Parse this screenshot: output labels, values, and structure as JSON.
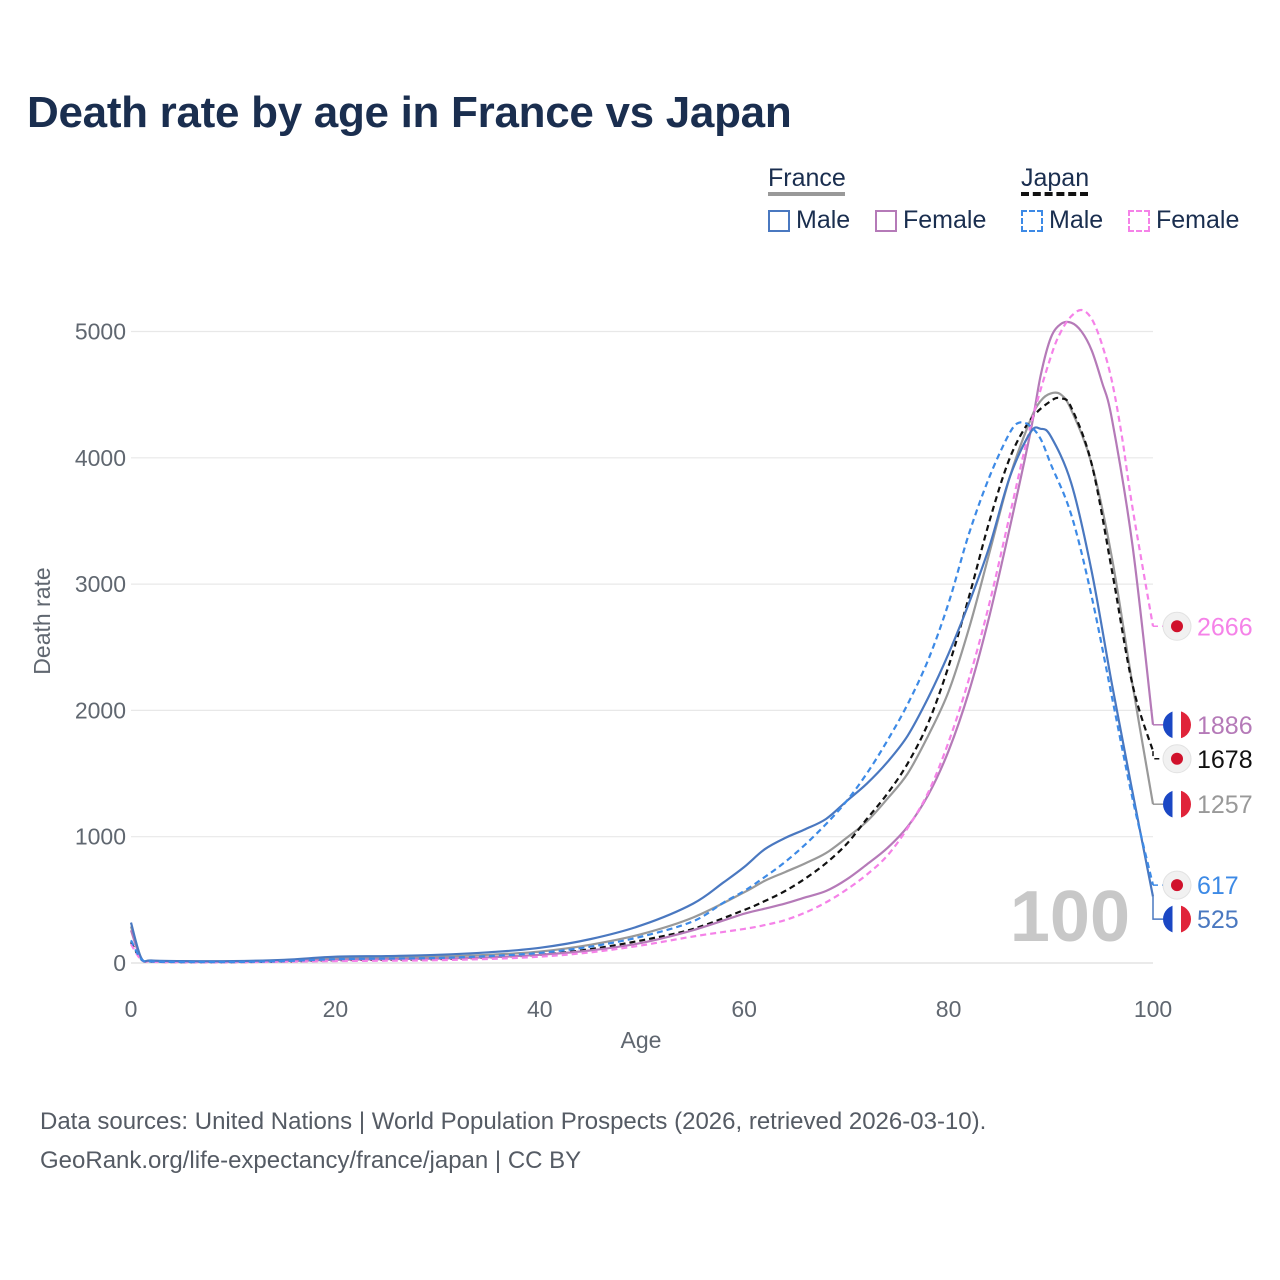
{
  "title": "Death rate by age in France vs Japan",
  "legend": {
    "groups": [
      {
        "name": "France",
        "underline_color": "#999999",
        "underline_style": "solid",
        "items": [
          {
            "label": "Male",
            "color": "#4a78c0",
            "style": "solid"
          },
          {
            "label": "Female",
            "color": "#b57ab8",
            "style": "solid"
          }
        ]
      },
      {
        "name": "Japan",
        "underline_color": "#111111",
        "underline_style": "dashed",
        "items": [
          {
            "label": "Male",
            "color": "#3d8ae6",
            "style": "dashed"
          },
          {
            "label": "Female",
            "color": "#f582e8",
            "style": "dashed"
          }
        ]
      }
    ]
  },
  "chart_data": {
    "type": "line",
    "title": "Death rate by age in France vs Japan",
    "xlabel": "Age",
    "ylabel": "Death rate",
    "xlim": [
      0,
      100
    ],
    "ylim": [
      0,
      5200
    ],
    "xticks": [
      0,
      20,
      40,
      60,
      80,
      100
    ],
    "yticks": [
      0,
      1000,
      2000,
      3000,
      4000,
      5000
    ],
    "grid": true,
    "watermark": "100",
    "series": [
      {
        "name": "France Male",
        "color": "#4a78c0",
        "dash": false,
        "flag": "france",
        "end_label": "525",
        "x": [
          0,
          1,
          2,
          5,
          10,
          15,
          20,
          25,
          30,
          35,
          40,
          45,
          50,
          55,
          58,
          60,
          62,
          64,
          66,
          68,
          70,
          72,
          74,
          76,
          78,
          80,
          82,
          84,
          86,
          88,
          89,
          90,
          92,
          94,
          96,
          98,
          100
        ],
        "y": [
          320,
          40,
          20,
          15,
          15,
          25,
          50,
          55,
          65,
          85,
          120,
          190,
          300,
          470,
          640,
          760,
          900,
          990,
          1060,
          1140,
          1280,
          1420,
          1590,
          1800,
          2100,
          2450,
          2850,
          3300,
          3850,
          4200,
          4230,
          4170,
          3800,
          3100,
          2200,
          1350,
          525
        ]
      },
      {
        "name": "France Female",
        "color": "#b57ab8",
        "dash": false,
        "flag": "france",
        "end_label": "1886",
        "x": [
          0,
          1,
          2,
          5,
          10,
          15,
          20,
          25,
          30,
          35,
          40,
          45,
          50,
          55,
          60,
          62,
          64,
          66,
          68,
          70,
          72,
          74,
          76,
          78,
          80,
          82,
          84,
          86,
          88,
          89,
          90,
          91,
          92,
          93,
          94,
          95,
          96,
          98,
          100
        ],
        "y": [
          260,
          35,
          15,
          10,
          10,
          15,
          25,
          30,
          35,
          45,
          65,
          100,
          160,
          260,
          390,
          430,
          470,
          520,
          570,
          660,
          780,
          910,
          1080,
          1330,
          1680,
          2150,
          2750,
          3450,
          4200,
          4650,
          4950,
          5060,
          5070,
          5000,
          4850,
          4600,
          4300,
          3300,
          1886
        ]
      },
      {
        "name": "France Total",
        "color": "#999999",
        "dash": false,
        "flag": "france",
        "end_label": "1257",
        "x": [
          0,
          1,
          2,
          5,
          10,
          15,
          20,
          25,
          30,
          35,
          40,
          45,
          50,
          55,
          60,
          62,
          64,
          66,
          68,
          70,
          72,
          74,
          76,
          78,
          80,
          82,
          84,
          86,
          88,
          89,
          90,
          91,
          92,
          94,
          96,
          98,
          100
        ],
        "y": [
          290,
          38,
          18,
          12,
          12,
          20,
          38,
          42,
          50,
          65,
          90,
          145,
          230,
          360,
          560,
          650,
          720,
          790,
          870,
          990,
          1120,
          1300,
          1500,
          1800,
          2150,
          2650,
          3250,
          3850,
          4300,
          4450,
          4510,
          4500,
          4380,
          3950,
          3200,
          2200,
          1257
        ]
      },
      {
        "name": "Japan Male",
        "color": "#3d8ae6",
        "dash": true,
        "flag": "japan",
        "end_label": "617",
        "x": [
          0,
          1,
          2,
          5,
          10,
          15,
          20,
          25,
          30,
          35,
          40,
          45,
          50,
          55,
          58,
          60,
          62,
          64,
          66,
          68,
          70,
          72,
          74,
          76,
          78,
          80,
          82,
          84,
          86,
          87,
          88,
          89,
          90,
          92,
          94,
          96,
          98,
          100
        ],
        "y": [
          180,
          30,
          12,
          8,
          8,
          15,
          30,
          35,
          40,
          55,
          80,
          130,
          210,
          330,
          480,
          570,
          680,
          800,
          940,
          1100,
          1280,
          1500,
          1760,
          2050,
          2400,
          2850,
          3400,
          3850,
          4200,
          4280,
          4250,
          4150,
          3950,
          3550,
          2900,
          2100,
          1300,
          617
        ]
      },
      {
        "name": "Japan Female",
        "color": "#f582e8",
        "dash": true,
        "flag": "japan",
        "end_label": "2666",
        "x": [
          0,
          1,
          2,
          5,
          10,
          15,
          20,
          25,
          30,
          35,
          40,
          45,
          50,
          55,
          60,
          62,
          64,
          66,
          68,
          70,
          72,
          74,
          76,
          78,
          80,
          82,
          84,
          86,
          88,
          90,
          91,
          92,
          93,
          94,
          95,
          96,
          97,
          98,
          100
        ],
        "y": [
          150,
          25,
          10,
          6,
          6,
          10,
          15,
          18,
          22,
          32,
          50,
          85,
          140,
          210,
          270,
          300,
          340,
          400,
          480,
          580,
          700,
          850,
          1070,
          1350,
          1750,
          2250,
          2850,
          3550,
          4250,
          4800,
          5000,
          5120,
          5170,
          5100,
          4900,
          4600,
          4150,
          3600,
          2666
        ]
      },
      {
        "name": "Japan Total",
        "color": "#111111",
        "dash": true,
        "flag": "japan",
        "end_label": "1678",
        "x": [
          0,
          1,
          2,
          5,
          10,
          15,
          20,
          25,
          30,
          35,
          40,
          45,
          50,
          55,
          60,
          62,
          64,
          66,
          68,
          70,
          72,
          74,
          76,
          78,
          80,
          82,
          84,
          86,
          88,
          90,
          91,
          92,
          94,
          96,
          98,
          100
        ],
        "y": [
          165,
          28,
          11,
          7,
          7,
          12,
          22,
          26,
          31,
          44,
          65,
          110,
          180,
          270,
          420,
          490,
          570,
          670,
          790,
          940,
          1140,
          1340,
          1580,
          1900,
          2350,
          2900,
          3500,
          4000,
          4300,
          4450,
          4470,
          4400,
          3950,
          3100,
          2200,
          1678
        ]
      }
    ],
    "end_markers": [
      {
        "label": "2666",
        "value": 2666,
        "flag": "japan",
        "color": "#f582e8"
      },
      {
        "label": "1886",
        "value": 1886,
        "flag": "france",
        "color": "#b57ab8"
      },
      {
        "label": "1678",
        "value": 1678,
        "flag": "japan",
        "color": "#111111"
      },
      {
        "label": "1257",
        "value": 1257,
        "flag": "france",
        "color": "#999999"
      },
      {
        "label": "617",
        "value": 617,
        "flag": "japan",
        "color": "#3d8ae6"
      },
      {
        "label": "525",
        "value": 525,
        "flag": "france",
        "color": "#4a78c0"
      }
    ]
  },
  "footer": {
    "line1": "Data sources: United Nations | World Population Prospects (2026, retrieved 2026-03-10).",
    "line2": "GeoRank.org/life-expectancy/france/japan | CC BY"
  }
}
